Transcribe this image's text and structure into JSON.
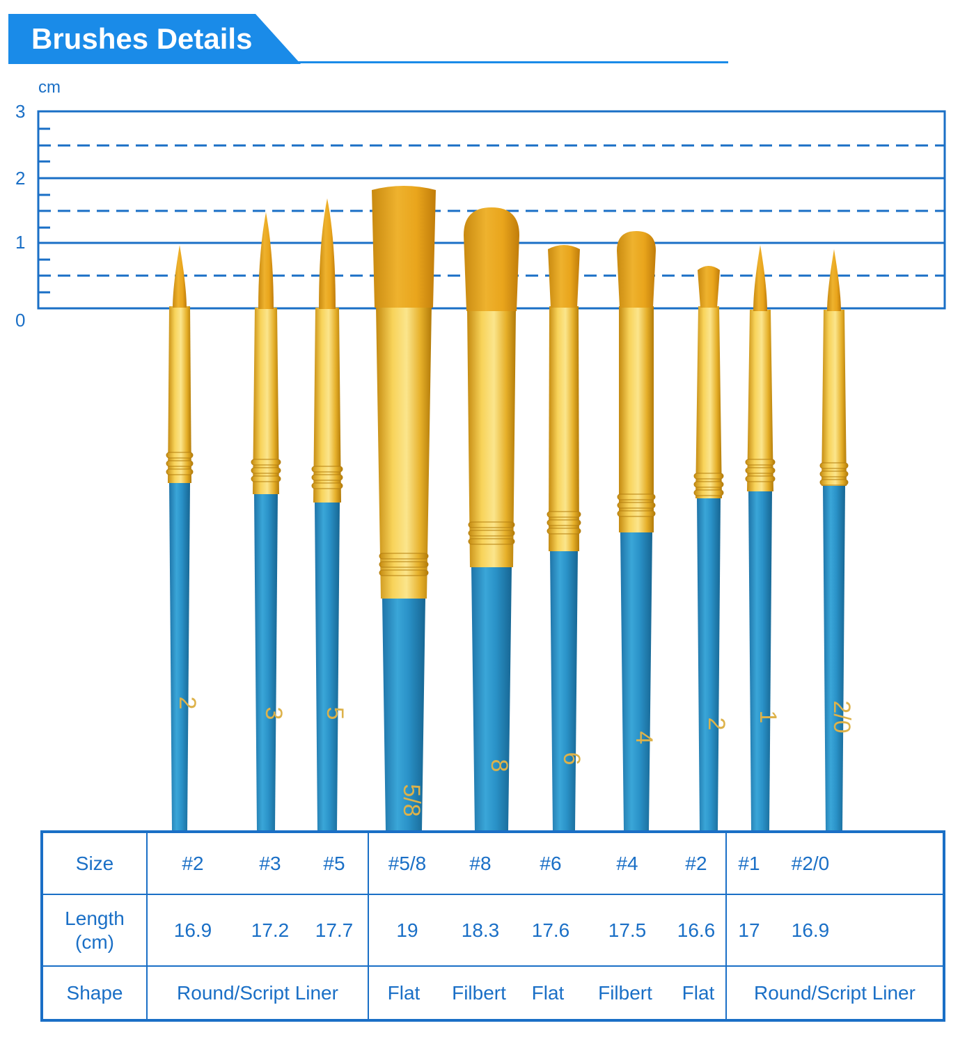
{
  "header": {
    "title": "Brushes Details",
    "accent_color": "#1a8be8"
  },
  "ruler": {
    "unit": "cm",
    "ticks": [
      "0",
      "1",
      "2",
      "3"
    ],
    "line_color": "#1a6fc6"
  },
  "brushes": [
    {
      "number": "2",
      "tip": "round"
    },
    {
      "number": "3",
      "tip": "round"
    },
    {
      "number": "5",
      "tip": "round"
    },
    {
      "number": "5/8",
      "tip": "flat"
    },
    {
      "number": "8",
      "tip": "filbert"
    },
    {
      "number": "6",
      "tip": "flat"
    },
    {
      "number": "4",
      "tip": "filbert"
    },
    {
      "number": "2",
      "tip": "flat"
    },
    {
      "number": "1",
      "tip": "round"
    },
    {
      "number": "2/0",
      "tip": "round"
    }
  ],
  "colors": {
    "handle": "#2a8fc4",
    "ferrule": "#e8b62a",
    "bristle": "#e0a21a"
  },
  "table": {
    "row_labels": {
      "size": "Size",
      "length_line1": "Length",
      "length_line2": "(cm)",
      "shape": "Shape"
    },
    "groups": [
      {
        "sizes": [
          "#2",
          "#3",
          "#5"
        ],
        "lengths": [
          "16.9",
          "17.2",
          "17.7"
        ],
        "shapes": [
          "Round/Script Liner"
        ]
      },
      {
        "sizes": [
          "#5/8",
          "#8",
          "#6",
          "#4",
          "#2"
        ],
        "lengths": [
          "19",
          "18.3",
          "17.6",
          "17.5",
          "16.6"
        ],
        "shapes": [
          "Flat",
          "Filbert",
          "Flat",
          "Filbert",
          "Flat"
        ]
      },
      {
        "sizes": [
          "#1",
          "#2/0"
        ],
        "lengths": [
          "17",
          "16.9"
        ],
        "shapes": [
          "Round/Script Liner"
        ]
      }
    ]
  }
}
